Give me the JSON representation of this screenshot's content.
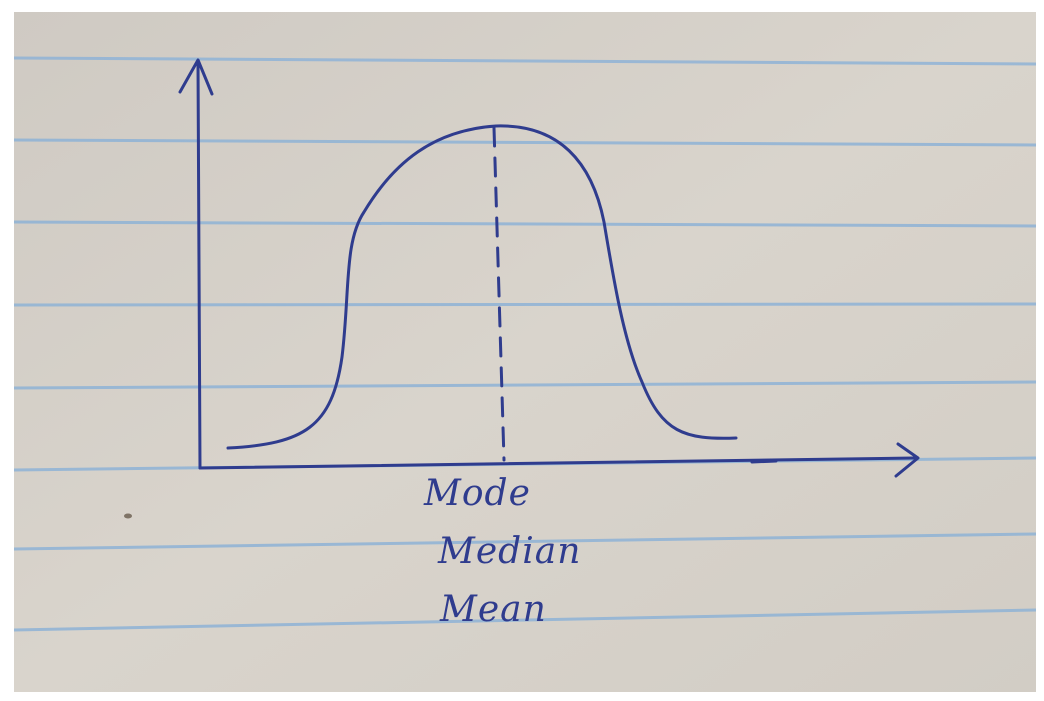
{
  "diagram": {
    "labels": {
      "mode": "Mode",
      "median": "Median",
      "mean": "Mean"
    },
    "colors": {
      "ink": "#2f3c8e",
      "paper": "#d5d0c8",
      "rule_line": "#8fb3d6"
    }
  }
}
